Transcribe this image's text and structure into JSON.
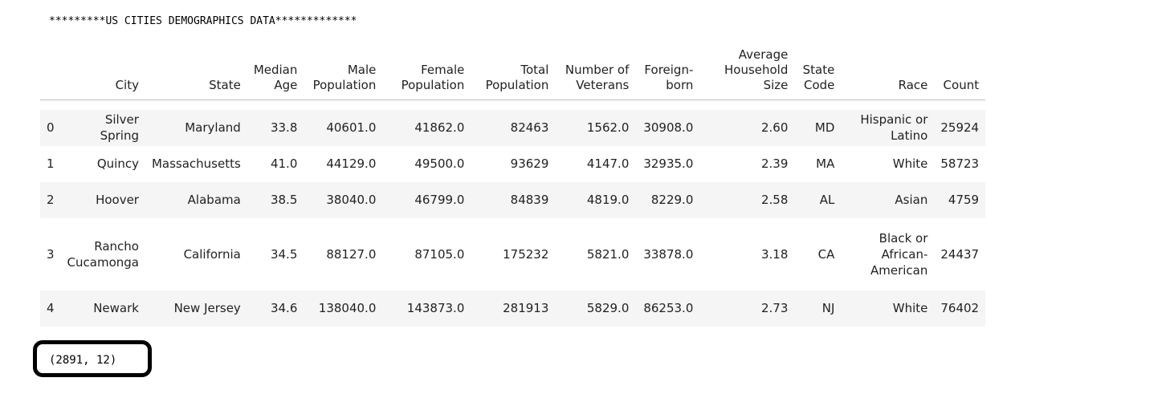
{
  "output": {
    "banner": "*********US CITIES DEMOGRAPHICS DATA*************",
    "shape": "(2891, 12)"
  },
  "table": {
    "columns": [
      "City",
      "State",
      "Median Age",
      "Male Population",
      "Female Population",
      "Total Population",
      "Number of Veterans",
      "Foreign-born",
      "Average Household Size",
      "State Code",
      "Race",
      "Count"
    ],
    "column_lines": [
      [
        "City"
      ],
      [
        "State"
      ],
      [
        "Median",
        "Age"
      ],
      [
        "Male",
        "Population"
      ],
      [
        "Female",
        "Population"
      ],
      [
        "Total",
        "Population"
      ],
      [
        "Number of",
        "Veterans"
      ],
      [
        "Foreign-",
        "born"
      ],
      [
        "Average",
        "Household",
        "Size"
      ],
      [
        "State",
        "Code"
      ],
      [
        "Race"
      ],
      [
        "Count"
      ]
    ],
    "rows": [
      {
        "index": "0",
        "city": "Silver Spring",
        "state": "Maryland",
        "median_age": "33.8",
        "male_population": "40601.0",
        "female_population": "41862.0",
        "total_population": "82463",
        "veterans": "1562.0",
        "foreign_born": "30908.0",
        "household_size": "2.60",
        "state_code": "MD",
        "race": "Hispanic or Latino",
        "count": "25924"
      },
      {
        "index": "1",
        "city": "Quincy",
        "state": "Massachusetts",
        "median_age": "41.0",
        "male_population": "44129.0",
        "female_population": "49500.0",
        "total_population": "93629",
        "veterans": "4147.0",
        "foreign_born": "32935.0",
        "household_size": "2.39",
        "state_code": "MA",
        "race": "White",
        "count": "58723"
      },
      {
        "index": "2",
        "city": "Hoover",
        "state": "Alabama",
        "median_age": "38.5",
        "male_population": "38040.0",
        "female_population": "46799.0",
        "total_population": "84839",
        "veterans": "4819.0",
        "foreign_born": "8229.0",
        "household_size": "2.58",
        "state_code": "AL",
        "race": "Asian",
        "count": "4759"
      },
      {
        "index": "3",
        "city": "Rancho Cucamonga",
        "state": "California",
        "median_age": "34.5",
        "male_population": "88127.0",
        "female_population": "87105.0",
        "total_population": "175232",
        "veterans": "5821.0",
        "foreign_born": "33878.0",
        "household_size": "3.18",
        "state_code": "CA",
        "race": "Black or African-American",
        "count": "24437"
      },
      {
        "index": "4",
        "city": "Newark",
        "state": "New Jersey",
        "median_age": "34.6",
        "male_population": "138040.0",
        "female_population": "143873.0",
        "total_population": "281913",
        "veterans": "5829.0",
        "foreign_born": "86253.0",
        "household_size": "2.73",
        "state_code": "NJ",
        "race": "White",
        "count": "76402"
      }
    ]
  }
}
